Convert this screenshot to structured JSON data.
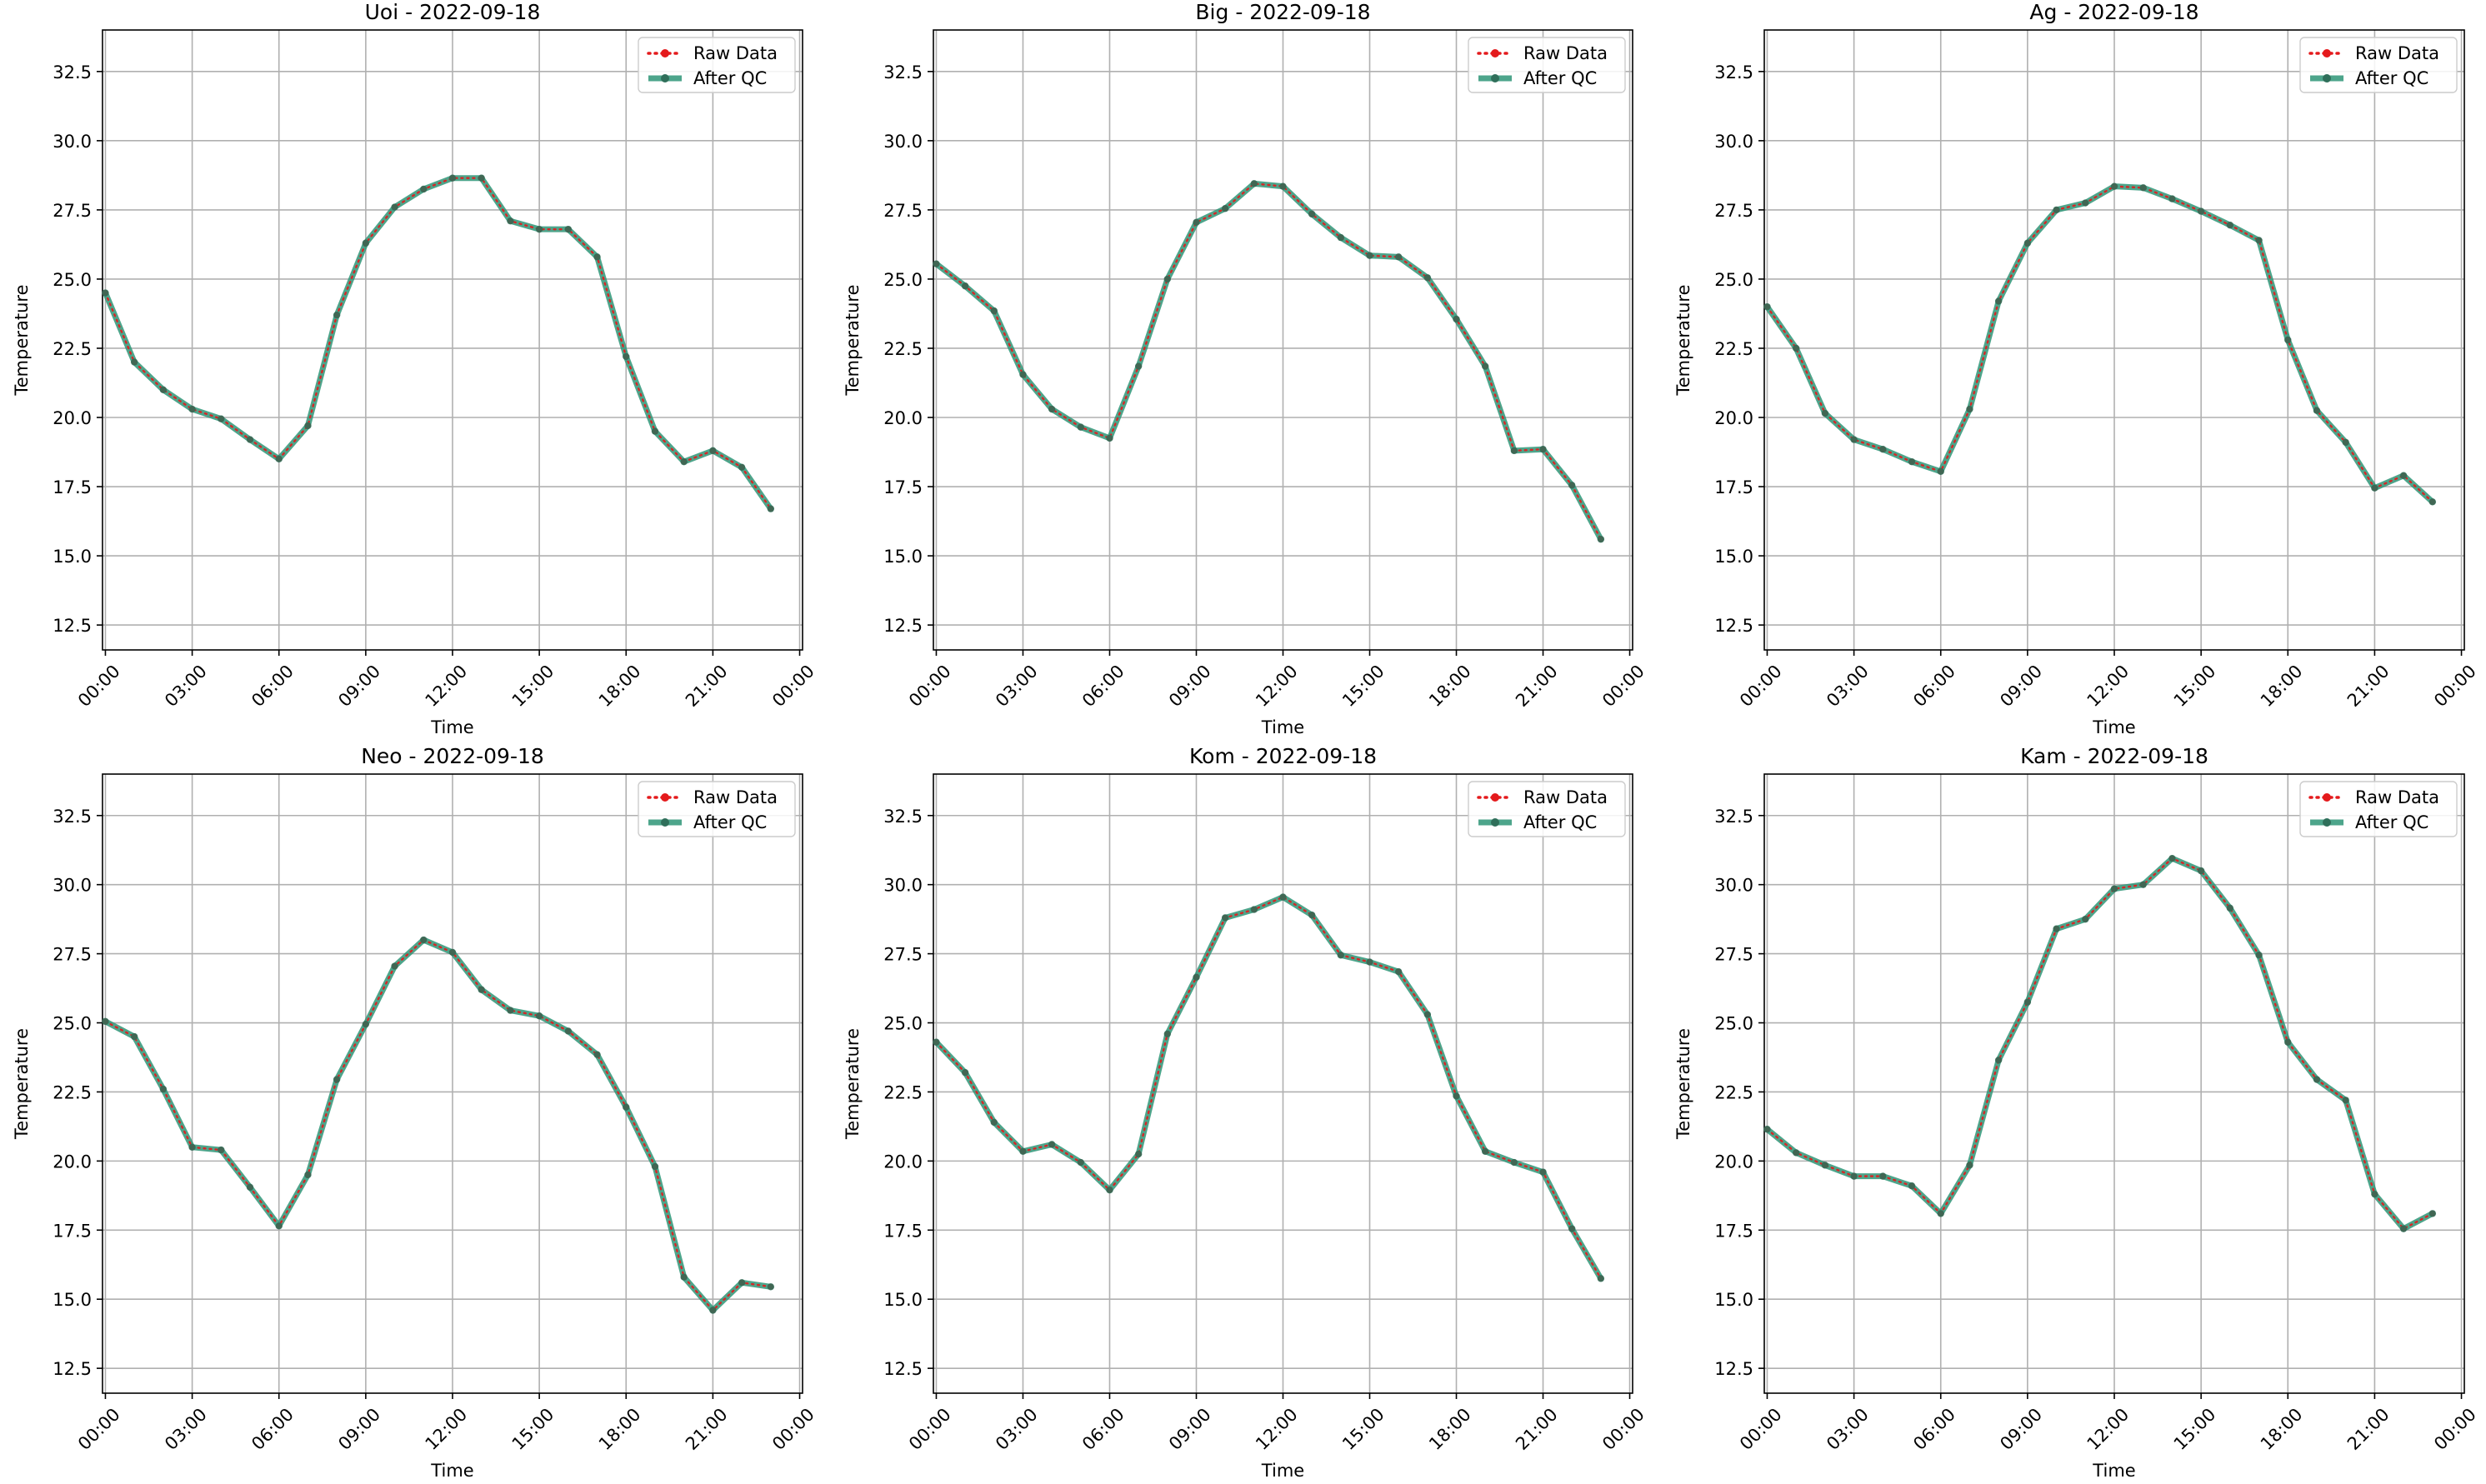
{
  "chart_data": [
    {
      "type": "line",
      "title": "Uoi - 2022-09-18",
      "xlabel": "Time",
      "ylabel": "Temperature",
      "x_ticks": [
        "00:00",
        "03:00",
        "06:00",
        "09:00",
        "12:00",
        "15:00",
        "18:00",
        "21:00",
        "00:00"
      ],
      "y_ticks": [
        "12.5",
        "15.0",
        "17.5",
        "20.0",
        "22.5",
        "25.0",
        "27.5",
        "30.0",
        "32.5"
      ],
      "xlim": [
        -0.1,
        24.1
      ],
      "ylim": [
        11.6,
        34.0
      ],
      "grid": true,
      "legend": {
        "position": "top-right",
        "entries": [
          "Raw Data",
          "After QC"
        ]
      },
      "x_hours": [
        0,
        1,
        2,
        3,
        4,
        5,
        6,
        7,
        8,
        9,
        10,
        11,
        12,
        13,
        14,
        15,
        16,
        17,
        18,
        19,
        20,
        21,
        22,
        23
      ],
      "series": [
        {
          "name": "Raw Data",
          "color": "#e41a1c",
          "values": [
            24.5,
            22.0,
            21.0,
            20.3,
            19.95,
            19.2,
            18.5,
            19.7,
            23.7,
            26.3,
            27.6,
            28.25,
            28.65,
            28.65,
            27.1,
            26.8,
            26.8,
            25.8,
            22.2,
            19.5,
            18.4,
            18.8,
            18.2,
            16.7
          ]
        },
        {
          "name": "After QC",
          "color": "#2e9577",
          "values": [
            24.5,
            22.0,
            21.0,
            20.3,
            19.95,
            19.2,
            18.5,
            19.7,
            23.7,
            26.3,
            27.6,
            28.25,
            28.65,
            28.65,
            27.1,
            26.8,
            26.8,
            25.8,
            22.2,
            19.5,
            18.4,
            18.8,
            18.2,
            16.7
          ]
        }
      ]
    },
    {
      "type": "line",
      "title": "Big - 2022-09-18",
      "xlabel": "Time",
      "ylabel": "Temperature",
      "x_ticks": [
        "00:00",
        "03:00",
        "06:00",
        "09:00",
        "12:00",
        "15:00",
        "18:00",
        "21:00",
        "00:00"
      ],
      "y_ticks": [
        "12.5",
        "15.0",
        "17.5",
        "20.0",
        "22.5",
        "25.0",
        "27.5",
        "30.0",
        "32.5"
      ],
      "xlim": [
        -0.1,
        24.1
      ],
      "ylim": [
        11.6,
        34.0
      ],
      "grid": true,
      "legend": {
        "position": "top-right",
        "entries": [
          "Raw Data",
          "After QC"
        ]
      },
      "x_hours": [
        0,
        1,
        2,
        3,
        4,
        5,
        6,
        7,
        8,
        9,
        10,
        11,
        12,
        13,
        14,
        15,
        16,
        17,
        18,
        19,
        20,
        21,
        22,
        23
      ],
      "series": [
        {
          "name": "Raw Data",
          "color": "#e41a1c",
          "values": [
            25.55,
            24.75,
            23.85,
            21.55,
            20.3,
            19.65,
            19.25,
            21.85,
            25.0,
            27.05,
            27.55,
            28.45,
            28.35,
            27.35,
            26.5,
            25.85,
            25.8,
            25.05,
            23.55,
            21.85,
            18.8,
            18.85,
            17.55,
            15.6
          ]
        },
        {
          "name": "After QC",
          "color": "#2e9577",
          "values": [
            25.55,
            24.75,
            23.85,
            21.55,
            20.3,
            19.65,
            19.25,
            21.85,
            25.0,
            27.05,
            27.55,
            28.45,
            28.35,
            27.35,
            26.5,
            25.85,
            25.8,
            25.05,
            23.55,
            21.85,
            18.8,
            18.85,
            17.55,
            15.6
          ]
        }
      ]
    },
    {
      "type": "line",
      "title": "Ag - 2022-09-18",
      "xlabel": "Time",
      "ylabel": "Temperature",
      "x_ticks": [
        "00:00",
        "03:00",
        "06:00",
        "09:00",
        "12:00",
        "15:00",
        "18:00",
        "21:00",
        "00:00"
      ],
      "y_ticks": [
        "12.5",
        "15.0",
        "17.5",
        "20.0",
        "22.5",
        "25.0",
        "27.5",
        "30.0",
        "32.5"
      ],
      "xlim": [
        -0.1,
        24.1
      ],
      "ylim": [
        11.6,
        34.0
      ],
      "grid": true,
      "legend": {
        "position": "top-right",
        "entries": [
          "Raw Data",
          "After QC"
        ]
      },
      "x_hours": [
        0,
        1,
        2,
        3,
        4,
        5,
        6,
        7,
        8,
        9,
        10,
        11,
        12,
        13,
        14,
        15,
        16,
        17,
        18,
        19,
        20,
        21,
        22,
        23
      ],
      "series": [
        {
          "name": "Raw Data",
          "color": "#e41a1c",
          "values": [
            24.0,
            22.5,
            20.15,
            19.2,
            18.85,
            18.4,
            18.05,
            20.3,
            24.2,
            26.3,
            27.5,
            27.75,
            28.35,
            28.3,
            27.9,
            27.45,
            26.95,
            26.4,
            22.8,
            20.25,
            19.1,
            17.45,
            17.9,
            16.95
          ]
        },
        {
          "name": "After QC",
          "color": "#2e9577",
          "values": [
            24.0,
            22.5,
            20.15,
            19.2,
            18.85,
            18.4,
            18.05,
            20.3,
            24.2,
            26.3,
            27.5,
            27.75,
            28.35,
            28.3,
            27.9,
            27.45,
            26.95,
            26.4,
            22.8,
            20.25,
            19.1,
            17.45,
            17.9,
            16.95
          ]
        }
      ]
    },
    {
      "type": "line",
      "title": "Neo - 2022-09-18",
      "xlabel": "Time",
      "ylabel": "Temperature",
      "x_ticks": [
        "00:00",
        "03:00",
        "06:00",
        "09:00",
        "12:00",
        "15:00",
        "18:00",
        "21:00",
        "00:00"
      ],
      "y_ticks": [
        "12.5",
        "15.0",
        "17.5",
        "20.0",
        "22.5",
        "25.0",
        "27.5",
        "30.0",
        "32.5"
      ],
      "xlim": [
        -0.1,
        24.1
      ],
      "ylim": [
        11.6,
        34.0
      ],
      "grid": true,
      "legend": {
        "position": "top-right",
        "entries": [
          "Raw Data",
          "After QC"
        ]
      },
      "x_hours": [
        0,
        1,
        2,
        3,
        4,
        5,
        6,
        7,
        8,
        9,
        10,
        11,
        12,
        13,
        14,
        15,
        16,
        17,
        18,
        19,
        20,
        21,
        22,
        23
      ],
      "series": [
        {
          "name": "Raw Data",
          "color": "#e41a1c",
          "values": [
            25.05,
            24.5,
            22.6,
            20.5,
            20.4,
            19.05,
            17.65,
            19.5,
            22.95,
            24.95,
            27.05,
            28.0,
            27.55,
            26.2,
            25.45,
            25.25,
            24.7,
            23.85,
            21.95,
            19.8,
            15.8,
            14.6,
            15.6,
            15.45
          ]
        },
        {
          "name": "After QC",
          "color": "#2e9577",
          "values": [
            25.05,
            24.5,
            22.6,
            20.5,
            20.4,
            19.05,
            17.65,
            19.5,
            22.95,
            24.95,
            27.05,
            28.0,
            27.55,
            26.2,
            25.45,
            25.25,
            24.7,
            23.85,
            21.95,
            19.8,
            15.8,
            14.6,
            15.6,
            15.45
          ]
        }
      ]
    },
    {
      "type": "line",
      "title": "Kom - 2022-09-18",
      "xlabel": "Time",
      "ylabel": "Temperature",
      "x_ticks": [
        "00:00",
        "03:00",
        "06:00",
        "09:00",
        "12:00",
        "15:00",
        "18:00",
        "21:00",
        "00:00"
      ],
      "y_ticks": [
        "12.5",
        "15.0",
        "17.5",
        "20.0",
        "22.5",
        "25.0",
        "27.5",
        "30.0",
        "32.5"
      ],
      "xlim": [
        -0.1,
        24.1
      ],
      "ylim": [
        11.6,
        34.0
      ],
      "grid": true,
      "legend": {
        "position": "top-right",
        "entries": [
          "Raw Data",
          "After QC"
        ]
      },
      "x_hours": [
        0,
        1,
        2,
        3,
        4,
        5,
        6,
        7,
        8,
        9,
        10,
        11,
        12,
        13,
        14,
        15,
        16,
        17,
        18,
        19,
        20,
        21,
        22,
        23
      ],
      "series": [
        {
          "name": "Raw Data",
          "color": "#e41a1c",
          "values": [
            24.3,
            23.2,
            21.4,
            20.35,
            20.6,
            19.95,
            18.95,
            20.25,
            24.6,
            26.65,
            28.8,
            29.1,
            29.55,
            28.9,
            27.45,
            27.2,
            26.85,
            25.3,
            22.35,
            20.35,
            19.95,
            19.6,
            17.55,
            15.75
          ]
        },
        {
          "name": "After QC",
          "color": "#2e9577",
          "values": [
            24.3,
            23.2,
            21.4,
            20.35,
            20.6,
            19.95,
            18.95,
            20.25,
            24.6,
            26.65,
            28.8,
            29.1,
            29.55,
            28.9,
            27.45,
            27.2,
            26.85,
            25.3,
            22.35,
            20.35,
            19.95,
            19.6,
            17.55,
            15.75
          ]
        }
      ]
    },
    {
      "type": "line",
      "title": "Kam - 2022-09-18",
      "xlabel": "Time",
      "ylabel": "Temperature",
      "x_ticks": [
        "00:00",
        "03:00",
        "06:00",
        "09:00",
        "12:00",
        "15:00",
        "18:00",
        "21:00",
        "00:00"
      ],
      "y_ticks": [
        "12.5",
        "15.0",
        "17.5",
        "20.0",
        "22.5",
        "25.0",
        "27.5",
        "30.0",
        "32.5"
      ],
      "xlim": [
        -0.1,
        24.1
      ],
      "ylim": [
        11.6,
        34.0
      ],
      "grid": true,
      "legend": {
        "position": "top-right",
        "entries": [
          "Raw Data",
          "After QC"
        ]
      },
      "x_hours": [
        0,
        1,
        2,
        3,
        4,
        5,
        6,
        7,
        8,
        9,
        10,
        11,
        12,
        13,
        14,
        15,
        16,
        17,
        18,
        19,
        20,
        21,
        22,
        23
      ],
      "series": [
        {
          "name": "Raw Data",
          "color": "#e41a1c",
          "values": [
            21.15,
            20.3,
            19.85,
            19.45,
            19.45,
            19.1,
            18.1,
            19.85,
            23.65,
            25.75,
            28.4,
            28.75,
            29.85,
            30.0,
            30.95,
            30.5,
            29.15,
            27.45,
            24.3,
            22.95,
            22.2,
            18.8,
            17.55,
            18.1
          ]
        },
        {
          "name": "After QC",
          "color": "#2e9577",
          "values": [
            21.15,
            20.3,
            19.85,
            19.45,
            19.45,
            19.1,
            18.1,
            19.85,
            23.65,
            25.75,
            28.4,
            28.75,
            29.85,
            30.0,
            30.95,
            30.5,
            29.15,
            27.45,
            24.3,
            22.95,
            22.2,
            18.8,
            17.55,
            18.1
          ]
        }
      ]
    }
  ]
}
